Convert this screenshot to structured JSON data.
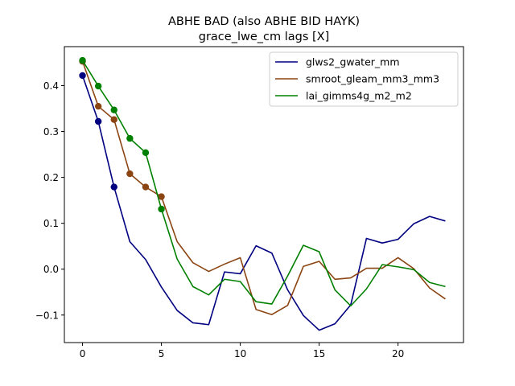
{
  "chart_data": {
    "type": "line",
    "title": "ABHE BAD (also ABHE BID HAYK)",
    "subtitle": "grace_lwe_cm lags [X]",
    "xlabel": "",
    "ylabel": "",
    "xlim": [
      -1.15,
      24.15
    ],
    "ylim": [
      -0.16,
      0.485
    ],
    "x_ticks": [
      0,
      5,
      10,
      15,
      20
    ],
    "x_tick_labels": [
      "0",
      "5",
      "10",
      "15",
      "20"
    ],
    "y_ticks": [
      -0.1,
      0.0,
      0.1,
      0.2,
      0.3,
      0.4
    ],
    "y_tick_labels": [
      "−0.1",
      "0.0",
      "0.1",
      "0.2",
      "0.3",
      "0.4"
    ],
    "grid": false,
    "legend_position": "top-right",
    "series": [
      {
        "name": "glws2_gwater_mm",
        "color": "#000080",
        "x": [
          0,
          1,
          2,
          3,
          4,
          5,
          6,
          7,
          8,
          9,
          10,
          11,
          12,
          13,
          14,
          15,
          16,
          17,
          18,
          19,
          20,
          21,
          22,
          23
        ],
        "values": [
          0.422,
          0.322,
          0.179,
          0.06,
          0.021,
          -0.039,
          -0.09,
          -0.117,
          -0.121,
          -0.006,
          -0.01,
          0.051,
          0.035,
          -0.045,
          -0.101,
          -0.133,
          -0.119,
          -0.078,
          0.067,
          0.057,
          0.065,
          0.099,
          0.115,
          0.105
        ],
        "marker_x": [
          0,
          1,
          2
        ],
        "marker_values": [
          0.422,
          0.322,
          0.179
        ]
      },
      {
        "name": "smroot_gleam_mm3_mm3",
        "color": "#8B4513",
        "x": [
          0,
          1,
          2,
          3,
          4,
          5,
          6,
          7,
          8,
          9,
          10,
          11,
          12,
          13,
          14,
          15,
          16,
          17,
          18,
          19,
          20,
          21,
          22,
          23
        ],
        "values": [
          0.453,
          0.355,
          0.326,
          0.208,
          0.179,
          0.158,
          0.06,
          0.014,
          -0.005,
          0.011,
          0.025,
          -0.088,
          -0.099,
          -0.079,
          0.006,
          0.017,
          -0.022,
          -0.019,
          0.002,
          0.002,
          0.025,
          0.001,
          -0.041,
          -0.065
        ],
        "marker_x": [
          0,
          1,
          2,
          3,
          4,
          5
        ],
        "marker_values": [
          0.453,
          0.355,
          0.326,
          0.208,
          0.179,
          0.158
        ]
      },
      {
        "name": "lai_gimms4g_m2_m2",
        "color": "#008000",
        "x": [
          0,
          1,
          2,
          3,
          4,
          5,
          6,
          7,
          8,
          9,
          10,
          11,
          12,
          13,
          14,
          15,
          16,
          17,
          18,
          19,
          20,
          21,
          22,
          23
        ],
        "values": [
          0.455,
          0.399,
          0.347,
          0.285,
          0.254,
          0.131,
          0.022,
          -0.038,
          -0.056,
          -0.022,
          -0.027,
          -0.071,
          -0.076,
          -0.015,
          0.052,
          0.038,
          -0.045,
          -0.08,
          -0.043,
          0.01,
          0.005,
          -0.001,
          -0.029,
          -0.038
        ],
        "marker_x": [
          0,
          1,
          2,
          3,
          4,
          5
        ],
        "marker_values": [
          0.455,
          0.399,
          0.347,
          0.285,
          0.254,
          0.131
        ]
      }
    ]
  }
}
